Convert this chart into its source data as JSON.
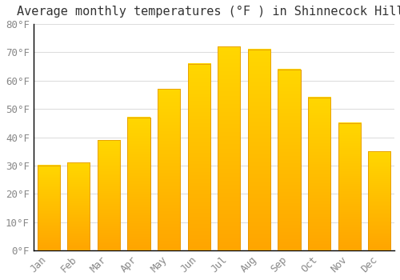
{
  "title": "Average monthly temperatures (°F ) in Shinnecock Hills",
  "months": [
    "Jan",
    "Feb",
    "Mar",
    "Apr",
    "May",
    "Jun",
    "Jul",
    "Aug",
    "Sep",
    "Oct",
    "Nov",
    "Dec"
  ],
  "values": [
    30,
    31,
    39,
    47,
    57,
    66,
    72,
    71,
    64,
    54,
    45,
    35
  ],
  "bar_color_top": "#FFD700",
  "bar_color_bottom": "#FFA500",
  "bar_edge_color": "#E09000",
  "background_color": "#FFFFFF",
  "grid_color": "#DDDDDD",
  "ylim": [
    0,
    80
  ],
  "yticks": [
    0,
    10,
    20,
    30,
    40,
    50,
    60,
    70,
    80
  ],
  "title_fontsize": 11,
  "tick_fontsize": 9,
  "tick_color": "#888888",
  "title_color": "#333333"
}
